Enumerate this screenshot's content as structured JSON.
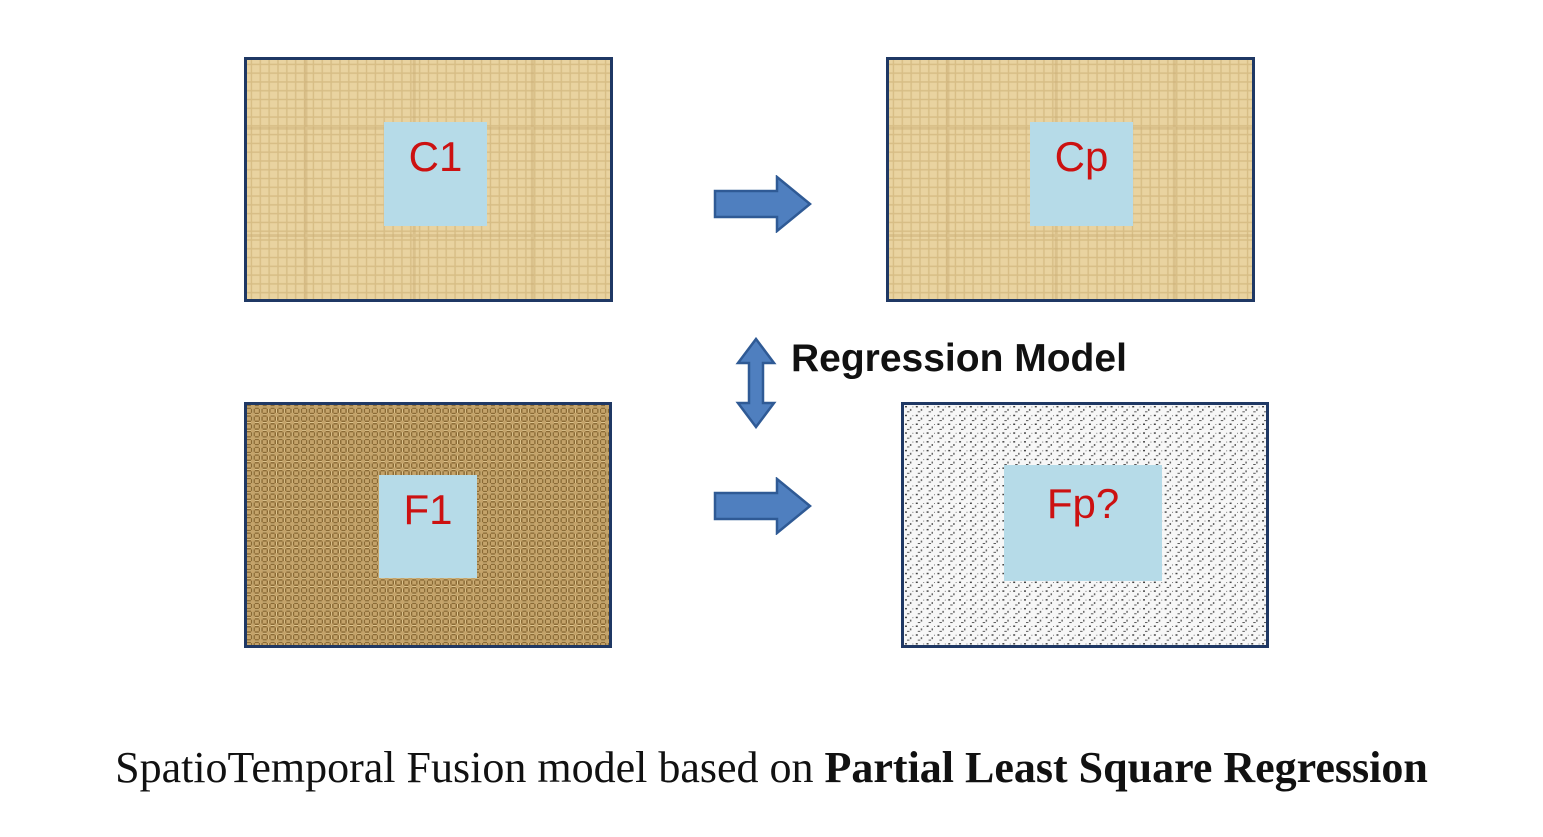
{
  "panels": {
    "c1": {
      "label": "C1"
    },
    "cp": {
      "label": "Cp"
    },
    "f1": {
      "label": "F1"
    },
    "fp": {
      "label": "Fp?"
    }
  },
  "model": {
    "label": "Regression Model"
  },
  "caption": {
    "prefix": "SpatioTemporal Fusion model based on ",
    "bold": "Partial Least Square Regression"
  },
  "colors": {
    "border": "#1f3864",
    "arrow": "#4f7fbf",
    "inset": "#b6dbe8",
    "inset_text": "#cc1111",
    "coarse_texture": "#e9d3a0",
    "fine_texture": "#b8955c"
  },
  "icons": {
    "right_arrow": "right-arrow-icon",
    "double_arrow": "vertical-double-arrow-icon"
  }
}
